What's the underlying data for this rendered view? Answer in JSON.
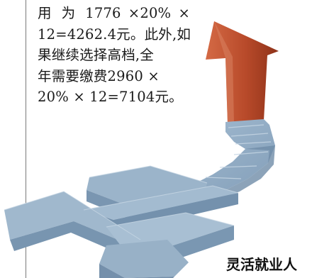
{
  "article": {
    "lines": [
      "用 为 1776 ×20% ×",
      "12=4262.4元。此外,如",
      "果继续选择高档,全",
      "年需要缴费2960 ×",
      "20% × 12=7104元。"
    ]
  },
  "illustration": {
    "name": "yuan-staircase-arrow",
    "colors": {
      "stairs": "#8ea9c2",
      "stairs_dark": "#6f8ca8",
      "arrow": "#b84a2a",
      "arrow_highlight": "#d46a45"
    }
  },
  "caption": {
    "text": "灵活就业人"
  }
}
